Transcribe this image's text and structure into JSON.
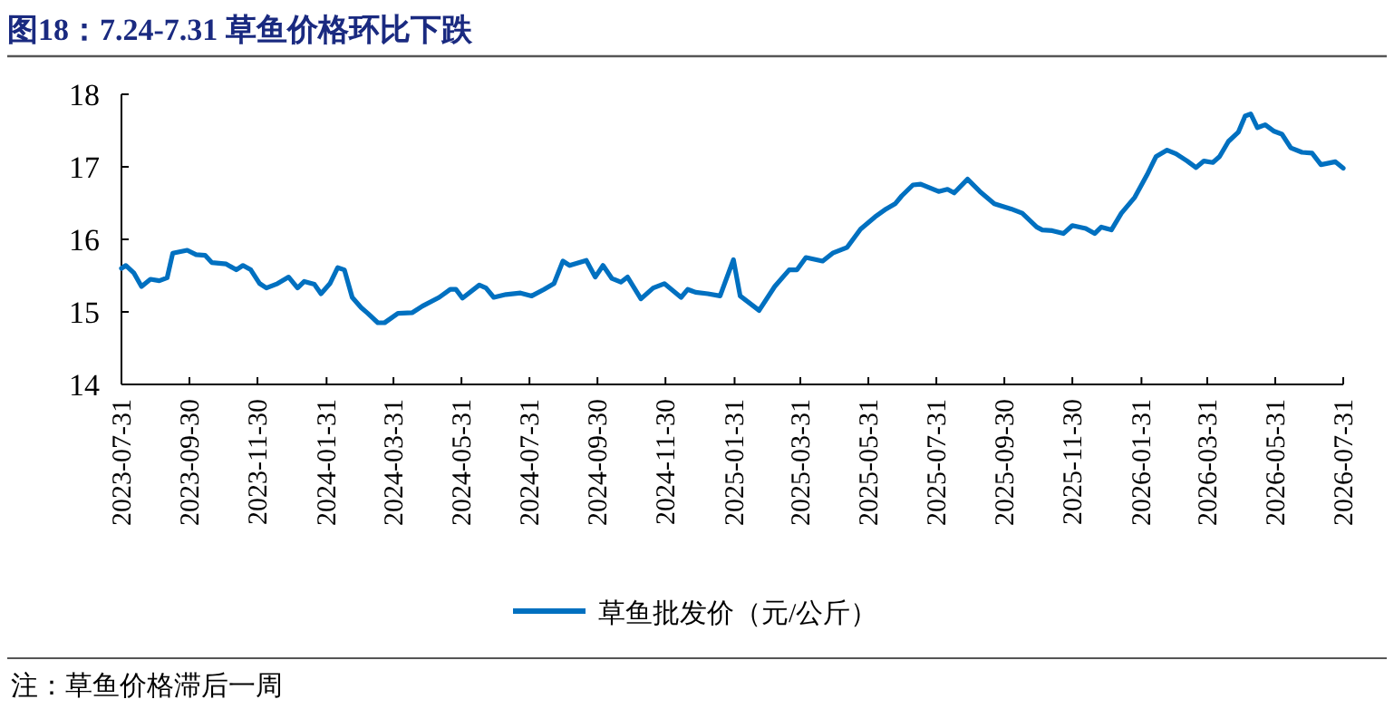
{
  "chart_data": {
    "type": "line",
    "title": "图18：7.24-7.31 草鱼价格环比下跌",
    "annotations": [
      "注：草鱼价格滞后一周"
    ],
    "xlim": [
      "2023-07-31",
      "2026-07-31"
    ],
    "xticks": [
      "2023-07-31",
      "2023-09-30",
      "2023-11-30",
      "2024-01-31",
      "2024-03-31",
      "2024-05-31",
      "2024-07-31",
      "2024-09-30",
      "2024-11-30",
      "2025-01-31",
      "2025-03-31",
      "2025-05-31",
      "2025-07-31",
      "2025-09-30",
      "2025-11-30",
      "2026-01-31",
      "2026-03-31",
      "2026-05-31",
      "2026-07-31"
    ],
    "ylim": [
      14,
      18
    ],
    "yticks": [
      14,
      15,
      16,
      17,
      18
    ],
    "grid": false,
    "legend": "bottom",
    "line_style": "solid",
    "marker": "none",
    "x": [
      "2023-07-31",
      "2023-08-04",
      "2023-08-11",
      "2023-08-18",
      "2023-08-26",
      "2023-09-03",
      "2023-09-10",
      "2023-09-15",
      "2023-09-28",
      "2023-10-06",
      "2023-10-14",
      "2023-10-20",
      "2023-11-02",
      "2023-11-11",
      "2023-11-17",
      "2023-11-24",
      "2023-12-02",
      "2023-12-08",
      "2023-12-18",
      "2023-12-28",
      "2024-01-05",
      "2024-01-11",
      "2024-01-20",
      "2024-01-26",
      "2024-02-03",
      "2024-02-10",
      "2024-02-16",
      "2024-02-23",
      "2024-03-02",
      "2024-03-08",
      "2024-03-17",
      "2024-03-23",
      "2024-04-04",
      "2024-04-17",
      "2024-04-26",
      "2024-05-11",
      "2024-05-21",
      "2024-05-26",
      "2024-06-01",
      "2024-06-16",
      "2024-06-22",
      "2024-06-29",
      "2024-07-10",
      "2024-07-23",
      "2024-08-02",
      "2024-08-13",
      "2024-08-22",
      "2024-08-30",
      "2024-09-05",
      "2024-09-20",
      "2024-09-28",
      "2024-10-05",
      "2024-10-13",
      "2024-10-21",
      "2024-10-27",
      "2024-11-08",
      "2024-11-19",
      "2024-11-29",
      "2024-12-14",
      "2024-12-20",
      "2024-12-27",
      "2025-01-07",
      "2025-01-18",
      "2025-01-30",
      "2025-02-05",
      "2025-02-22",
      "2025-03-08",
      "2025-03-21",
      "2025-03-28",
      "2025-04-05",
      "2025-04-20",
      "2025-04-29",
      "2025-05-12",
      "2025-05-24",
      "2025-06-06",
      "2025-06-16",
      "2025-06-24",
      "2025-06-30",
      "2025-07-10",
      "2025-07-17",
      "2025-08-02",
      "2025-08-10",
      "2025-08-16",
      "2025-08-28",
      "2025-09-08",
      "2025-09-21",
      "2025-10-06",
      "2025-10-16",
      "2025-10-29",
      "2025-11-03",
      "2025-11-12",
      "2025-11-22",
      "2025-11-30",
      "2025-12-12",
      "2025-12-20",
      "2025-12-26",
      "2026-01-04",
      "2026-01-13",
      "2026-01-25",
      "2026-02-05",
      "2026-02-13",
      "2026-02-23",
      "2026-03-03",
      "2026-03-13",
      "2026-03-21",
      "2026-03-28",
      "2026-04-05",
      "2026-04-11",
      "2026-04-19",
      "2026-04-28",
      "2026-05-04",
      "2026-05-09",
      "2026-05-15",
      "2026-05-22",
      "2026-05-30",
      "2026-06-06",
      "2026-06-14",
      "2026-06-24",
      "2026-07-03",
      "2026-07-11",
      "2026-07-24",
      "2026-07-31"
    ],
    "series": [
      {
        "name": "草鱼批发价（元/公斤）",
        "color": "#0070c0",
        "values": [
          15.6,
          15.64,
          15.54,
          15.35,
          15.45,
          15.43,
          15.47,
          15.81,
          15.85,
          15.79,
          15.78,
          15.68,
          15.66,
          15.58,
          15.64,
          15.58,
          15.39,
          15.33,
          15.39,
          15.48,
          15.33,
          15.42,
          15.38,
          15.25,
          15.39,
          15.61,
          15.58,
          15.2,
          15.06,
          14.98,
          14.85,
          14.85,
          14.98,
          14.99,
          15.08,
          15.2,
          15.31,
          15.31,
          15.19,
          15.37,
          15.33,
          15.2,
          15.24,
          15.26,
          15.22,
          15.31,
          15.39,
          15.7,
          15.64,
          15.71,
          15.48,
          15.64,
          15.46,
          15.41,
          15.48,
          15.18,
          15.33,
          15.39,
          15.2,
          15.31,
          15.27,
          15.25,
          15.22,
          15.72,
          15.22,
          15.02,
          15.35,
          15.58,
          15.58,
          15.75,
          15.7,
          15.81,
          15.89,
          16.14,
          16.31,
          16.42,
          16.49,
          16.6,
          16.75,
          16.76,
          16.66,
          16.69,
          16.64,
          16.83,
          16.66,
          16.49,
          16.42,
          16.36,
          16.17,
          16.13,
          16.12,
          16.08,
          16.19,
          16.15,
          16.08,
          16.17,
          16.13,
          16.36,
          16.58,
          16.89,
          17.14,
          17.23,
          17.18,
          17.08,
          16.99,
          17.08,
          17.06,
          17.14,
          17.35,
          17.48,
          17.7,
          17.73,
          17.54,
          17.58,
          17.49,
          17.45,
          17.26,
          17.2,
          17.19,
          17.03,
          17.07,
          16.98
        ]
      }
    ]
  }
}
